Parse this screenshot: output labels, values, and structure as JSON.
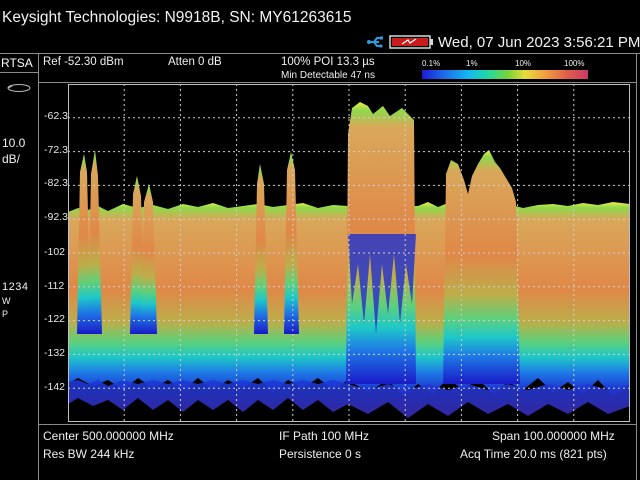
{
  "window": {
    "title": "Keysight Technologies: N9918B, SN: MY61263615",
    "datetime": "Wed, 07 Jun 2023 3:56:21 PM"
  },
  "mode": "RTSA",
  "header": {
    "ref_level": "Ref -52.30 dBm",
    "attenuation": "Atten 0 dB",
    "poi": "100% POI 13.3 µs",
    "min_detectable": "Min Detectable 47 ns"
  },
  "persistence_scale": {
    "labels": [
      "0.1%",
      "1%",
      "10%",
      "100%"
    ],
    "colors": [
      "#1b1bd6",
      "#14b8f0",
      "#22d8a0",
      "#7ad33a",
      "#e8dc3a",
      "#f0a040",
      "#e05a4a",
      "#c83a6a"
    ]
  },
  "left_panel": {
    "scale_value": "10.0",
    "scale_unit": "dB/",
    "trace_numbers": "1234",
    "trace_mode_1": "W",
    "trace_mode_2": "P"
  },
  "y_axis_labels": [
    "-62.3",
    "-72.3",
    "-82.3",
    "-92.3",
    "-102",
    "-112",
    "-122",
    "-132",
    "-142"
  ],
  "footer": {
    "center": "Center 500.000000 MHz",
    "if_path": "IF Path 100 MHz",
    "span": "Span 100.000000 MHz",
    "res_bw": "Res BW 244 kHz",
    "persistence": "Persistence 0  s",
    "acq_time": "Acq Time 20.0 ms (821 pts)"
  },
  "icons": {
    "usb": "usb-icon",
    "battery": "battery-icon"
  }
}
